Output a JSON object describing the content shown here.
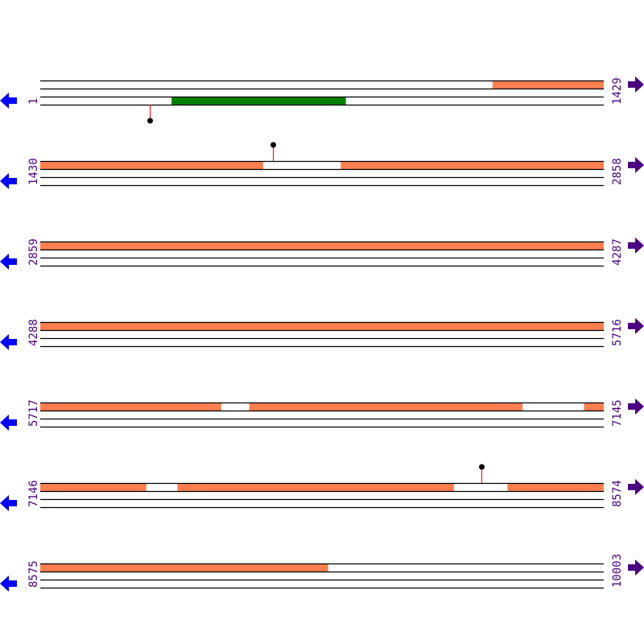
{
  "rows": [
    {
      "start": 1,
      "end": 1429
    },
    {
      "start": 1430,
      "end": 2858
    },
    {
      "start": 2859,
      "end": 4287
    },
    {
      "start": 4288,
      "end": 5716
    },
    {
      "start": 5717,
      "end": 7145
    },
    {
      "start": 7146,
      "end": 8574
    },
    {
      "start": 8575,
      "end": 10003
    }
  ],
  "features": [
    {
      "track": 0,
      "start": 1148,
      "end": 1994,
      "color": "#ff7f50"
    },
    {
      "track": 0,
      "start": 2192,
      "end": 6175,
      "color": "#ff7f50"
    },
    {
      "track": 0,
      "start": 6247,
      "end": 6939,
      "color": "#ff7f50"
    },
    {
      "track": 0,
      "start": 7096,
      "end": 7414,
      "color": "#ff7f50"
    },
    {
      "track": 0,
      "start": 7494,
      "end": 8194,
      "color": "#ff7f50"
    },
    {
      "track": 0,
      "start": 8331,
      "end": 9304,
      "color": "#ff7f50"
    },
    {
      "track": 2,
      "start": 334,
      "end": 775,
      "color": "#008000"
    }
  ],
  "markers": [
    {
      "position": 279,
      "direction": "down"
    },
    {
      "position": 2020,
      "direction": "up"
    },
    {
      "position": 8264,
      "direction": "up"
    }
  ],
  "colors": {
    "left_arrow": "#0000ff",
    "right_arrow": "#4b0082",
    "label": "#4b0082",
    "marker_stem": "#ff0000",
    "marker_head": "#000000"
  },
  "icons": {
    "left": "arrow-left-icon",
    "right": "arrow-right-icon"
  }
}
